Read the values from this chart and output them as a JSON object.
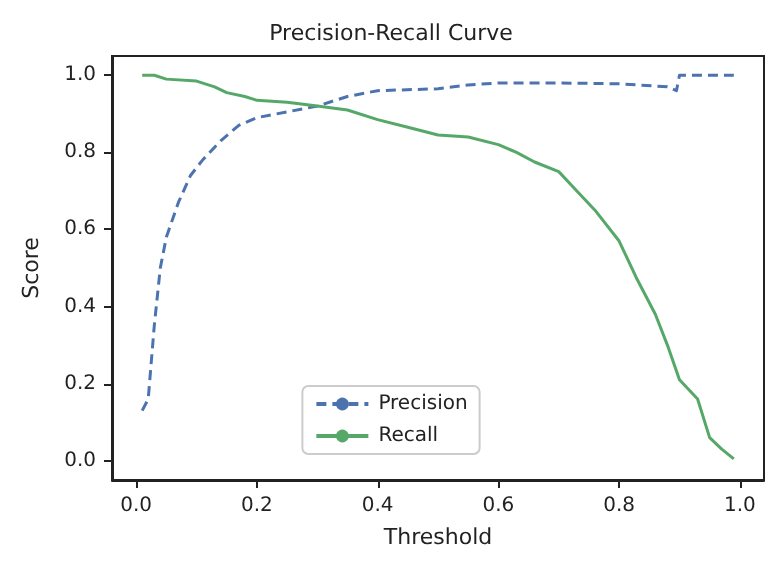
{
  "chart_data": {
    "type": "line",
    "title": "Precision-Recall Curve",
    "xlabel": "Threshold",
    "ylabel": "Score",
    "xlim": [
      -0.04,
      1.04
    ],
    "ylim": [
      -0.05,
      1.05
    ],
    "xticks": [
      {
        "value": 0,
        "label": "0.0"
      },
      0.2,
      0.4,
      0.6,
      0.8,
      {
        "value": 1,
        "label": "1.0"
      }
    ],
    "yticks": [
      {
        "value": 0,
        "label": "0.0"
      },
      0.2,
      0.4,
      0.6,
      0.8,
      {
        "value": 1,
        "label": "1.0"
      }
    ],
    "grid": false,
    "legend": "bottom",
    "marker": "none",
    "series": [
      {
        "name": "Precision",
        "color": "#4c72b0",
        "line_style": "dashed",
        "x": [
          0.01,
          0.02,
          0.03,
          0.04,
          0.05,
          0.07,
          0.09,
          0.11,
          0.14,
          0.17,
          0.2,
          0.25,
          0.3,
          0.35,
          0.4,
          0.5,
          0.55,
          0.6,
          0.7,
          0.8,
          0.88,
          0.895,
          0.9,
          0.99
        ],
        "values": [
          0.13,
          0.16,
          0.35,
          0.5,
          0.58,
          0.67,
          0.74,
          0.78,
          0.83,
          0.87,
          0.89,
          0.905,
          0.92,
          0.945,
          0.96,
          0.965,
          0.975,
          0.98,
          0.98,
          0.978,
          0.97,
          0.96,
          1.0,
          1.0
        ]
      },
      {
        "name": "Recall",
        "color": "#55a868",
        "line_style": "solid",
        "x": [
          0.01,
          0.03,
          0.05,
          0.1,
          0.13,
          0.15,
          0.18,
          0.2,
          0.25,
          0.3,
          0.35,
          0.4,
          0.45,
          0.5,
          0.55,
          0.6,
          0.63,
          0.66,
          0.7,
          0.73,
          0.76,
          0.8,
          0.83,
          0.86,
          0.88,
          0.9,
          0.93,
          0.95,
          0.97,
          0.99
        ],
        "values": [
          1.0,
          1.0,
          0.99,
          0.985,
          0.97,
          0.955,
          0.945,
          0.935,
          0.93,
          0.92,
          0.91,
          0.885,
          0.865,
          0.845,
          0.84,
          0.82,
          0.8,
          0.775,
          0.75,
          0.7,
          0.65,
          0.57,
          0.47,
          0.38,
          0.3,
          0.21,
          0.16,
          0.06,
          0.03,
          0.005
        ]
      }
    ]
  }
}
